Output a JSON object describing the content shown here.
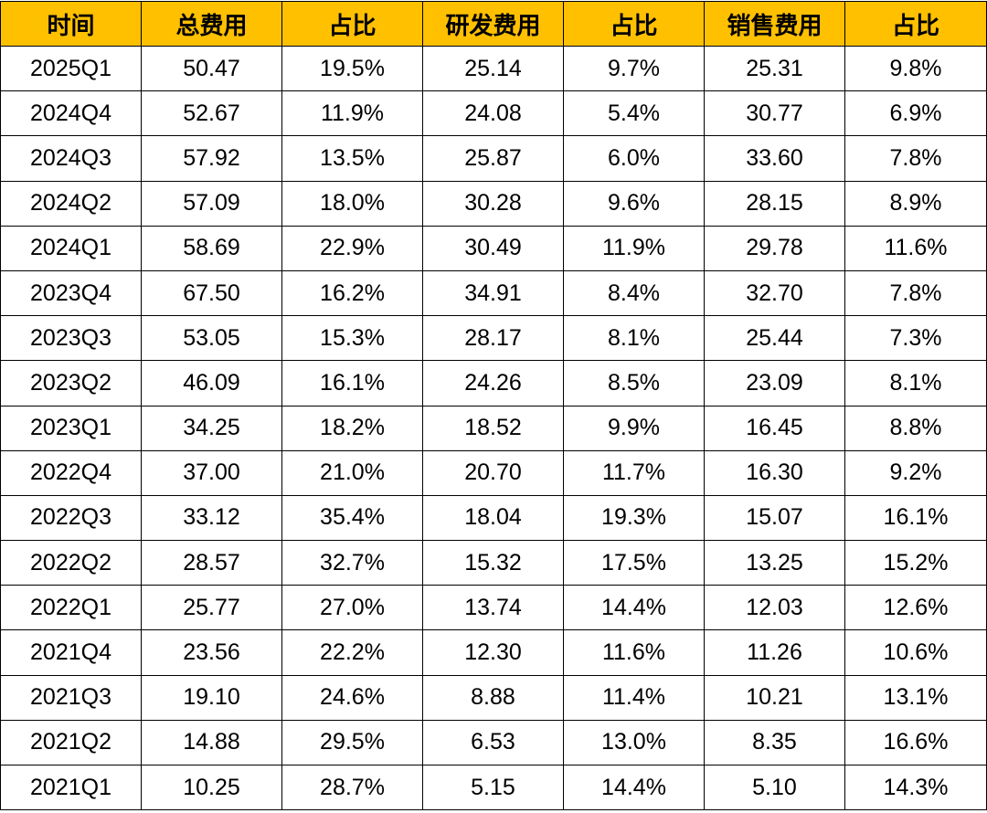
{
  "colors": {
    "header_background": "#FFC000",
    "border": "#000000",
    "text": "#000000"
  },
  "table": {
    "headers": [
      "时间",
      "总费用",
      "占比",
      "研发费用",
      "占比",
      "销售费用",
      "占比"
    ],
    "rows": [
      [
        "2025Q1",
        "50.47",
        "19.5%",
        "25.14",
        "9.7%",
        "25.31",
        "9.8%"
      ],
      [
        "2024Q4",
        "52.67",
        "11.9%",
        "24.08",
        "5.4%",
        "30.77",
        "6.9%"
      ],
      [
        "2024Q3",
        "57.92",
        "13.5%",
        "25.87",
        "6.0%",
        "33.60",
        "7.8%"
      ],
      [
        "2024Q2",
        "57.09",
        "18.0%",
        "30.28",
        "9.6%",
        "28.15",
        "8.9%"
      ],
      [
        "2024Q1",
        "58.69",
        "22.9%",
        "30.49",
        "11.9%",
        "29.78",
        "11.6%"
      ],
      [
        "2023Q4",
        "67.50",
        "16.2%",
        "34.91",
        "8.4%",
        "32.70",
        "7.8%"
      ],
      [
        "2023Q3",
        "53.05",
        "15.3%",
        "28.17",
        "8.1%",
        "25.44",
        "7.3%"
      ],
      [
        "2023Q2",
        "46.09",
        "16.1%",
        "24.26",
        "8.5%",
        "23.09",
        "8.1%"
      ],
      [
        "2023Q1",
        "34.25",
        "18.2%",
        "18.52",
        "9.9%",
        "16.45",
        "8.8%"
      ],
      [
        "2022Q4",
        "37.00",
        "21.0%",
        "20.70",
        "11.7%",
        "16.30",
        "9.2%"
      ],
      [
        "2022Q3",
        "33.12",
        "35.4%",
        "18.04",
        "19.3%",
        "15.07",
        "16.1%"
      ],
      [
        "2022Q2",
        "28.57",
        "32.7%",
        "15.32",
        "17.5%",
        "13.25",
        "15.2%"
      ],
      [
        "2022Q1",
        "25.77",
        "27.0%",
        "13.74",
        "14.4%",
        "12.03",
        "12.6%"
      ],
      [
        "2021Q4",
        "23.56",
        "22.2%",
        "12.30",
        "11.6%",
        "11.26",
        "10.6%"
      ],
      [
        "2021Q3",
        "19.10",
        "24.6%",
        "8.88",
        "11.4%",
        "10.21",
        "13.1%"
      ],
      [
        "2021Q2",
        "14.88",
        "29.5%",
        "6.53",
        "13.0%",
        "8.35",
        "16.6%"
      ],
      [
        "2021Q1",
        "10.25",
        "28.7%",
        "5.15",
        "14.4%",
        "5.10",
        "14.3%"
      ]
    ]
  }
}
